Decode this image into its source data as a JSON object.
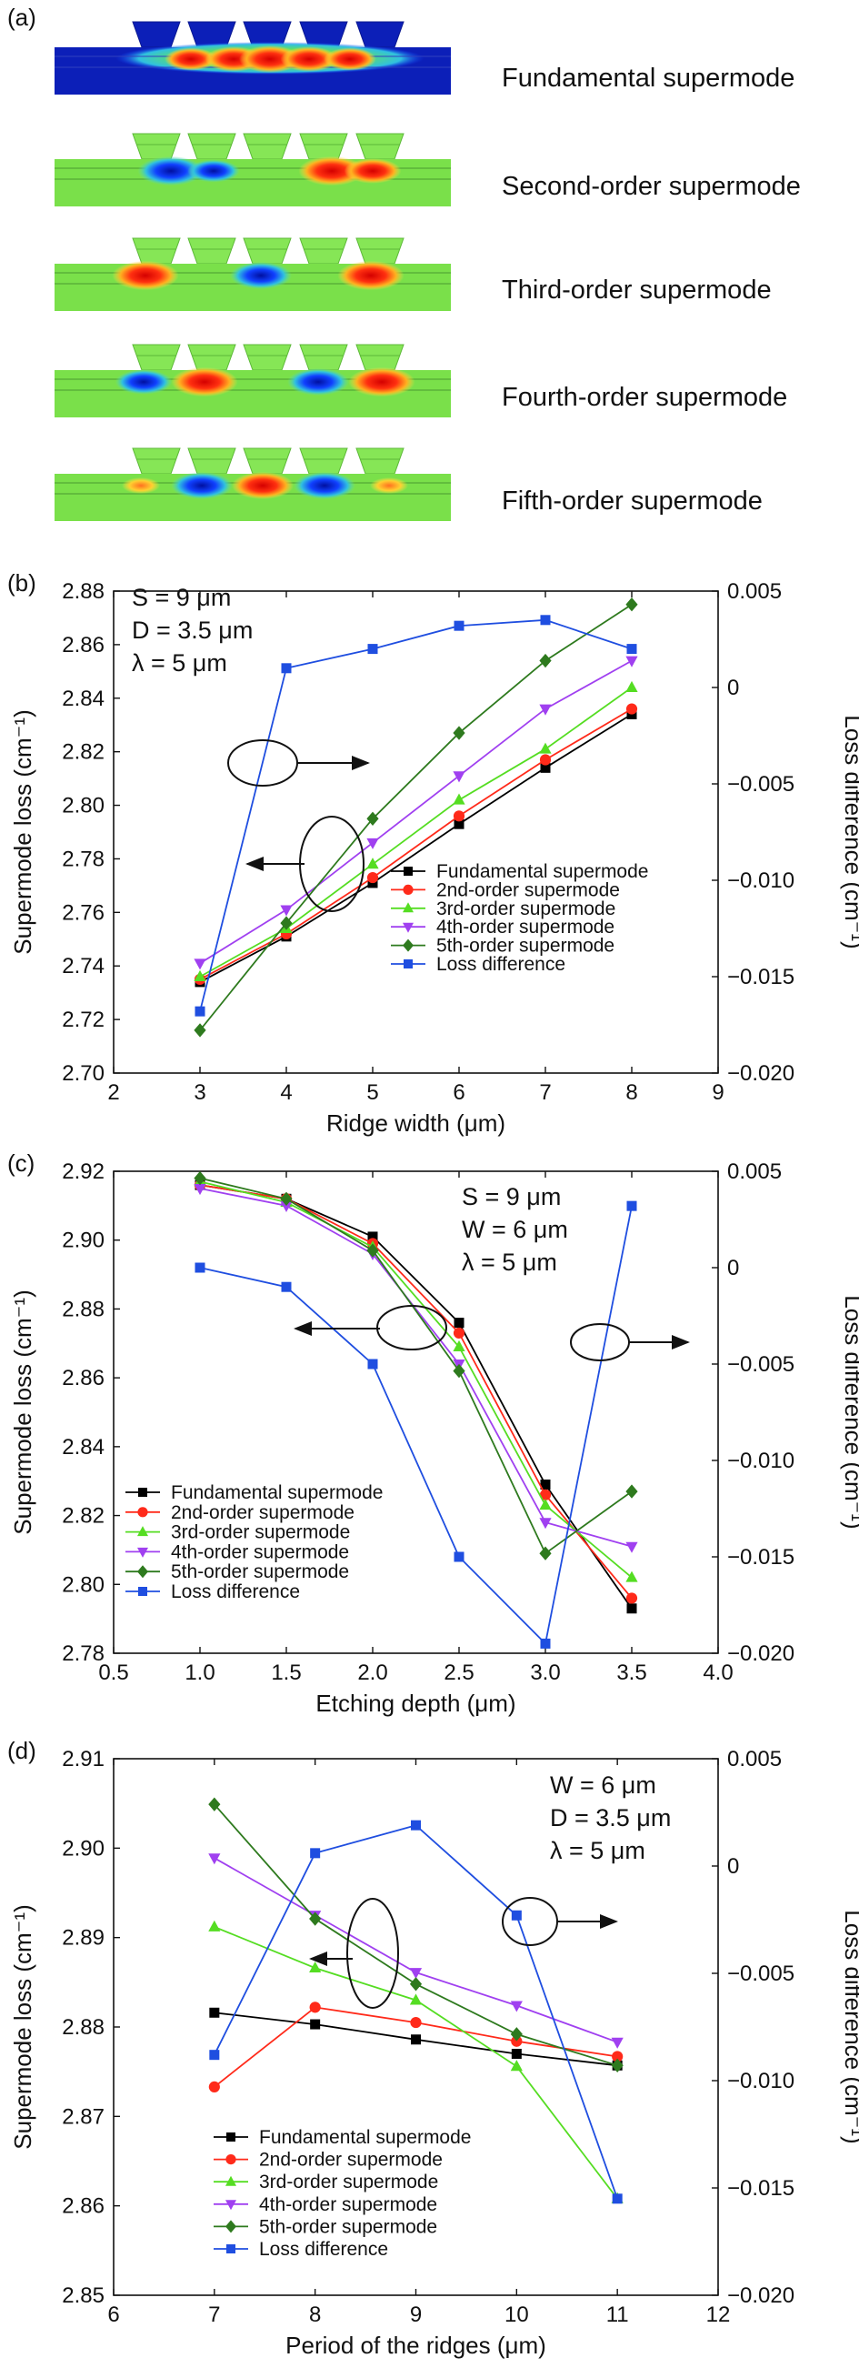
{
  "panel_a": {
    "letter": "(a)",
    "modes": [
      {
        "label": "Fundamental supermode",
        "order": 1
      },
      {
        "label": "Second-order supermode",
        "order": 2
      },
      {
        "label": "Third-order supermode",
        "order": 3
      },
      {
        "label": "Fourth-order supermode",
        "order": 4
      },
      {
        "label": "Fifth-order supermode",
        "order": 5
      }
    ]
  },
  "chart_data": [
    {
      "type": "line",
      "letter": "(b)",
      "xlabel": "Ridge width (μm)",
      "ylabel": "Supermode loss (cm⁻¹)",
      "y2label": "Loss difference (cm⁻¹)",
      "xlim": [
        2,
        9
      ],
      "xticks": [
        2,
        3,
        4,
        5,
        6,
        7,
        8,
        9
      ],
      "ylim": [
        2.7,
        2.88
      ],
      "yticks": [
        2.7,
        2.72,
        2.74,
        2.76,
        2.78,
        2.8,
        2.82,
        2.84,
        2.86,
        2.88
      ],
      "ydec": 2,
      "y2lim": [
        -0.02,
        0.005
      ],
      "y2ticks": [
        -0.02,
        -0.015,
        -0.01,
        -0.005,
        0,
        0.005
      ],
      "y2dec": 3,
      "params": [
        "S = 9 μm",
        "D = 3.5 μm",
        "λ = 5 μm"
      ],
      "legend_position": "bottom-right",
      "x": [
        3,
        4,
        5,
        6,
        7,
        8
      ],
      "series": [
        {
          "name": "Fundamental supermode",
          "axis": "left",
          "marker": "square",
          "color": "#000000",
          "values": [
            2.734,
            2.751,
            2.771,
            2.793,
            2.814,
            2.834
          ]
        },
        {
          "name": "2nd-order supermode",
          "axis": "left",
          "marker": "circle",
          "color": "#ff2a1a",
          "values": [
            2.735,
            2.752,
            2.773,
            2.796,
            2.817,
            2.836
          ]
        },
        {
          "name": "3rd-order supermode",
          "axis": "left",
          "marker": "triangle-up",
          "color": "#55dd22",
          "values": [
            2.736,
            2.754,
            2.778,
            2.802,
            2.821,
            2.844
          ]
        },
        {
          "name": "4th-order supermode",
          "axis": "left",
          "marker": "triangle-down",
          "color": "#a040f0",
          "values": [
            2.741,
            2.761,
            2.786,
            2.811,
            2.836,
            2.854
          ]
        },
        {
          "name": "5th-order supermode",
          "axis": "left",
          "marker": "diamond",
          "color": "#2e7a1e",
          "values": [
            2.716,
            2.756,
            2.795,
            2.827,
            2.854,
            2.875
          ]
        },
        {
          "name": "Loss difference",
          "axis": "right",
          "marker": "square",
          "color": "#1f4ee0",
          "values": [
            -0.0168,
            0.001,
            0.002,
            0.0032,
            0.0035,
            0.002
          ]
        }
      ]
    },
    {
      "type": "line",
      "letter": "(c)",
      "xlabel": "Etching depth (μm)",
      "ylabel": "Supermode loss (cm⁻¹)",
      "y2label": "Loss difference (cm⁻¹)",
      "xlim": [
        0.5,
        4.0
      ],
      "xticks": [
        0.5,
        1.0,
        1.5,
        2.0,
        2.5,
        3.0,
        3.5,
        4.0
      ],
      "ylim": [
        2.78,
        2.92
      ],
      "yticks": [
        2.78,
        2.8,
        2.82,
        2.84,
        2.86,
        2.88,
        2.9,
        2.92
      ],
      "ydec": 2,
      "y2lim": [
        -0.02,
        0.005
      ],
      "y2ticks": [
        -0.02,
        -0.015,
        -0.01,
        -0.005,
        0,
        0.005
      ],
      "y2dec": 3,
      "params": [
        "S = 9 μm",
        "W = 6 μm",
        "λ = 5 μm"
      ],
      "legend_position": "bottom-left",
      "x": [
        1.0,
        1.5,
        2.0,
        2.5,
        3.0,
        3.5
      ],
      "series": [
        {
          "name": "Fundamental supermode",
          "axis": "left",
          "marker": "square",
          "color": "#000000",
          "values": [
            2.916,
            2.912,
            2.901,
            2.876,
            2.829,
            2.793
          ]
        },
        {
          "name": "2nd-order supermode",
          "axis": "left",
          "marker": "circle",
          "color": "#ff2a1a",
          "values": [
            2.916,
            2.912,
            2.899,
            2.873,
            2.826,
            2.796
          ]
        },
        {
          "name": "3rd-order supermode",
          "axis": "left",
          "marker": "triangle-up",
          "color": "#55dd22",
          "values": [
            2.917,
            2.911,
            2.898,
            2.869,
            2.823,
            2.802
          ]
        },
        {
          "name": "4th-order supermode",
          "axis": "left",
          "marker": "triangle-down",
          "color": "#a040f0",
          "values": [
            2.915,
            2.91,
            2.896,
            2.864,
            2.818,
            2.811
          ]
        },
        {
          "name": "5th-order supermode",
          "axis": "left",
          "marker": "diamond",
          "color": "#2e7a1e",
          "values": [
            2.918,
            2.912,
            2.897,
            2.862,
            2.809,
            2.827
          ]
        },
        {
          "name": "Loss difference",
          "axis": "right",
          "marker": "square",
          "color": "#1f4ee0",
          "values": [
            0.0,
            -0.001,
            -0.005,
            -0.015,
            -0.0195,
            0.0032
          ]
        }
      ]
    },
    {
      "type": "line",
      "letter": "(d)",
      "xlabel": "Period of the ridges (μm)",
      "ylabel": "Supermode loss (cm⁻¹)",
      "y2label": "Loss difference (cm⁻¹)",
      "xlim": [
        6,
        12
      ],
      "xticks": [
        6,
        7,
        8,
        9,
        10,
        11,
        12
      ],
      "ylim": [
        2.85,
        2.91
      ],
      "yticks": [
        2.85,
        2.86,
        2.87,
        2.88,
        2.89,
        2.9,
        2.91
      ],
      "ydec": 2,
      "y2lim": [
        -0.02,
        0.005
      ],
      "y2ticks": [
        -0.02,
        -0.015,
        -0.01,
        -0.005,
        0,
        0.005
      ],
      "y2dec": 3,
      "params": [
        "W = 6 μm",
        "D = 3.5 μm",
        "λ = 5 μm"
      ],
      "legend_position": "bottom-left",
      "x": [
        7,
        8,
        9,
        10,
        11
      ],
      "series": [
        {
          "name": "Fundamental supermode",
          "axis": "left",
          "marker": "square",
          "color": "#000000",
          "values": [
            2.8816,
            2.8803,
            2.8786,
            2.877,
            2.8757
          ]
        },
        {
          "name": "2nd-order supermode",
          "axis": "left",
          "marker": "circle",
          "color": "#ff2a1a",
          "values": [
            2.8733,
            2.8822,
            2.8805,
            2.8784,
            2.8767
          ]
        },
        {
          "name": "3rd-order supermode",
          "axis": "left",
          "marker": "triangle-up",
          "color": "#55dd22",
          "values": [
            2.8912,
            2.8866,
            2.883,
            2.8756,
            2.8608
          ]
        },
        {
          "name": "4th-order supermode",
          "axis": "left",
          "marker": "triangle-down",
          "color": "#a040f0",
          "values": [
            2.8989,
            2.8925,
            2.8861,
            2.8824,
            2.8783
          ]
        },
        {
          "name": "5th-order supermode",
          "axis": "left",
          "marker": "diamond",
          "color": "#2e7a1e",
          "values": [
            2.9049,
            2.8921,
            2.8848,
            2.8792,
            2.8757
          ]
        },
        {
          "name": "Loss difference",
          "axis": "right",
          "marker": "square",
          "color": "#1f4ee0",
          "values": [
            -0.0088,
            0.0006,
            0.0019,
            -0.0023,
            -0.0155
          ]
        }
      ]
    }
  ]
}
